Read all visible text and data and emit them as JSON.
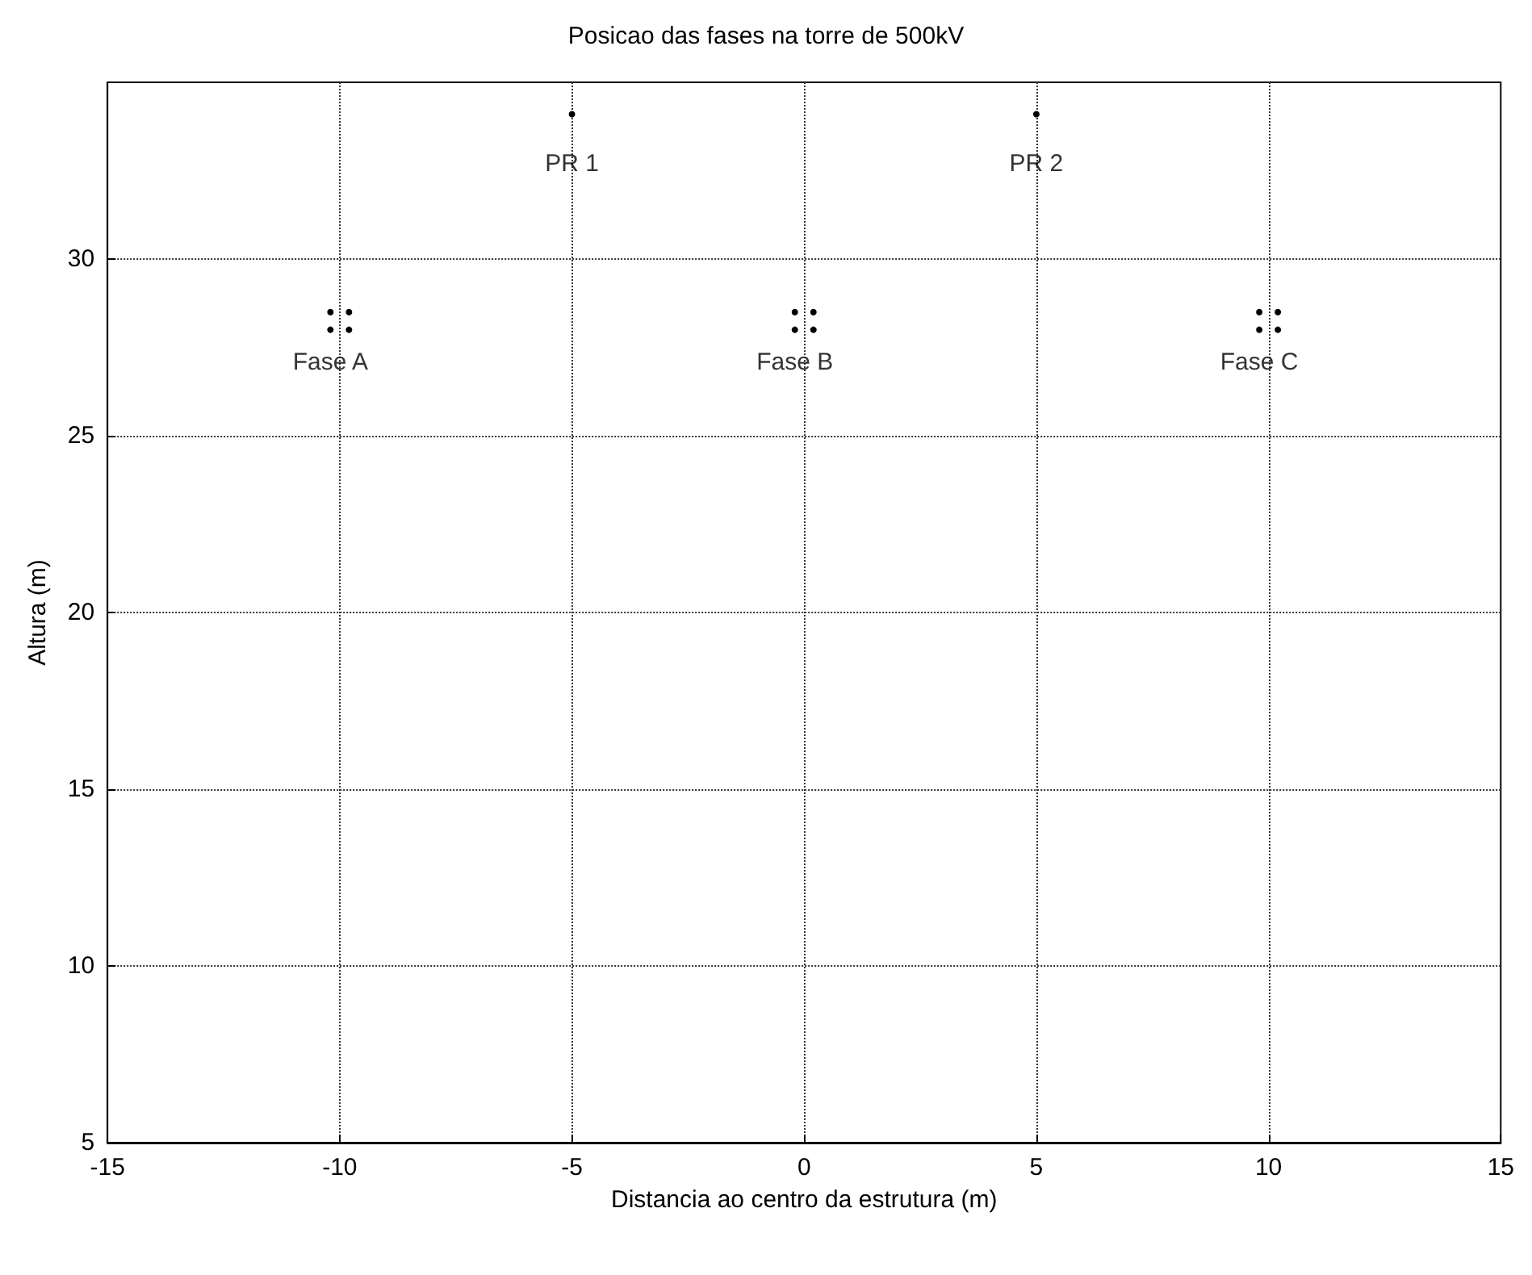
{
  "chart_data": {
    "type": "scatter",
    "title": "Posicao das fases na torre de 500kV",
    "xlabel": "Distancia ao centro da estrutura (m)",
    "ylabel": "Altura (m)",
    "x": [
      -10.2,
      -9.8,
      -10.2,
      -9.8,
      -0.2,
      0.2,
      -0.2,
      0.2,
      9.8,
      10.2,
      9.8,
      10.2,
      -5,
      5
    ],
    "series": [
      {
        "color": "#000000",
        "values": [
          28.5,
          28.5,
          28.0,
          28.0,
          28.5,
          28.5,
          28.0,
          28.0,
          28.5,
          28.5,
          28.0,
          28.0,
          34.1,
          34.1
        ]
      }
    ],
    "xlim": [
      -15,
      15
    ],
    "xticks": [
      -15,
      -10,
      -5,
      0,
      5,
      10,
      15
    ],
    "ylim": [
      5,
      35
    ],
    "yticks": [
      5,
      10,
      15,
      20,
      25,
      30
    ],
    "grid": true,
    "marker": "circle",
    "line_style": "dotted",
    "annotations": [
      {
        "text": "Fase A",
        "x": -10.2,
        "y": 28.5
      },
      {
        "text": "Fase B",
        "x": -0.2,
        "y": 28.5
      },
      {
        "text": "Fase C",
        "x": 9.8,
        "y": 28.5
      },
      {
        "text": "PR 1",
        "x": -5,
        "y": 34.1
      },
      {
        "text": "PR 2",
        "x": 5,
        "y": 34.1
      }
    ]
  }
}
